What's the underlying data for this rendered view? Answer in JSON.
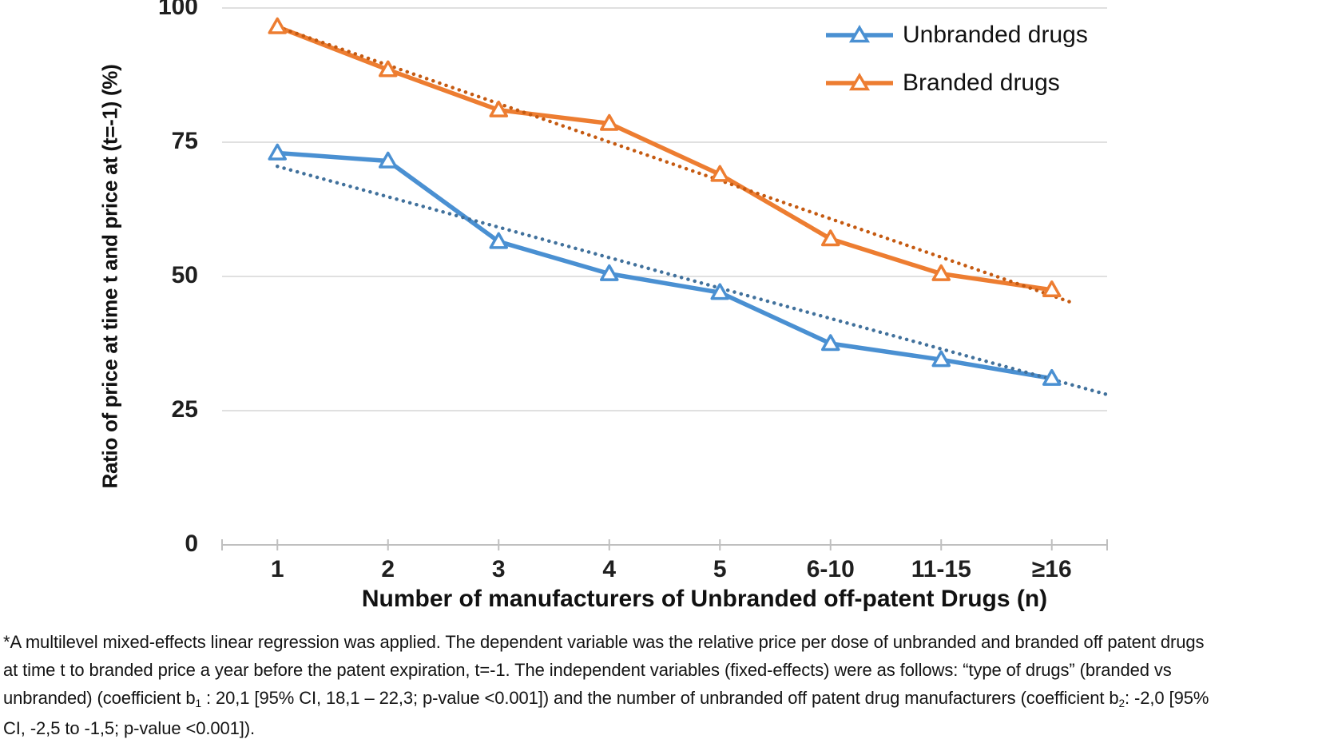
{
  "chart_data": {
    "type": "line",
    "categories": [
      "1",
      "2",
      "3",
      "4",
      "5",
      "6-10",
      "11-15",
      "≥16"
    ],
    "x_axis": {
      "title": "Number of manufacturers of Unbranded off-patent Drugs (n)"
    },
    "y_axis": {
      "title": "Ratio of price at time t and price at (t=-1) (%)",
      "min": 0,
      "max": 100,
      "ticks": [
        0,
        25,
        50,
        75,
        100
      ]
    },
    "grid": true,
    "gridline_color": "#d6d6d6",
    "axis_color": "#bfbfbf",
    "legend_position": "top-right",
    "series": [
      {
        "name": "Unbranded drugs",
        "color": "#4a90d2",
        "values": [
          73,
          71.5,
          56.5,
          50.5,
          47,
          37.5,
          34.5,
          31
        ],
        "trend": {
          "style": "dotted",
          "color": "#41719c",
          "start_value": 70.5,
          "end_value": 28,
          "end_cat_index": 7.5
        }
      },
      {
        "name": "Branded drugs",
        "color": "#ed7d31",
        "values": [
          96.5,
          88.5,
          81,
          78.5,
          69,
          57,
          50.5,
          47.5
        ],
        "trend": {
          "style": "dotted",
          "color": "#c55a11",
          "start_value": 96.5,
          "end_value": 45,
          "end_cat_index": 7.2
        }
      }
    ]
  },
  "footnote": {
    "lines": [
      [
        {
          "text": "*A multilevel mixed-effects linear regression was applied. The dependent variable was the relative price per dose of unbranded and branded off patent drugs"
        }
      ],
      [
        {
          "text": "at time t to branded price a year before the patent expiration, t=-1. The independent variables (fixed-effects) were as follows: “type of drugs” (branded vs"
        }
      ],
      [
        {
          "text": "unbranded) (coefficient b"
        },
        {
          "text": "1",
          "sub": true
        },
        {
          "text": " : 20,1 [95% CI, 18,1 – 22,3; p-value <0.001]) and the number of unbranded off patent drug manufacturers (coefficient b"
        },
        {
          "text": "2",
          "sub": true
        },
        {
          "text": ": -2,0 [95%"
        }
      ],
      [
        {
          "text": "CI, -2,5 to -1,5; p-value <0.001])."
        }
      ]
    ]
  }
}
